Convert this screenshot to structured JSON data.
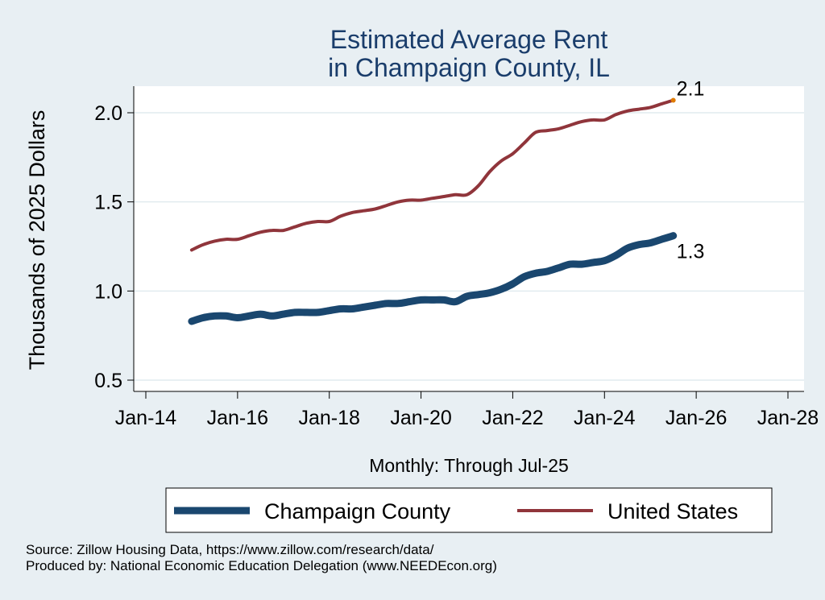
{
  "chart_data": {
    "type": "line",
    "title": [
      "Estimated Average Rent",
      "in Champaign County, IL"
    ],
    "xlabel": "Monthly: Through Jul-25",
    "ylabel": "Thousands of 2025 Dollars",
    "xlim": [
      "2014-01",
      "2028-01"
    ],
    "ylim": [
      0.5,
      2.1
    ],
    "xticks": [
      "Jan-14",
      "Jan-16",
      "Jan-18",
      "Jan-20",
      "Jan-22",
      "Jan-24",
      "Jan-26",
      "Jan-28"
    ],
    "xtick_values": [
      "2014-01",
      "2016-01",
      "2018-01",
      "2020-01",
      "2022-01",
      "2024-01",
      "2026-01",
      "2028-01"
    ],
    "yticks": [
      "0.5",
      "1.0",
      "1.5",
      "2.0"
    ],
    "ytick_values": [
      0.5,
      1.0,
      1.5,
      2.0
    ],
    "grid": "horizontal",
    "legend_position": "bottom",
    "series": [
      {
        "name": "Champaign County",
        "color": "#1a476f",
        "end_label": "1.3",
        "points": [
          [
            "2015-01",
            0.83
          ],
          [
            "2015-04",
            0.85
          ],
          [
            "2015-07",
            0.86
          ],
          [
            "2015-10",
            0.86
          ],
          [
            "2016-01",
            0.85
          ],
          [
            "2016-04",
            0.86
          ],
          [
            "2016-07",
            0.87
          ],
          [
            "2016-10",
            0.86
          ],
          [
            "2017-01",
            0.87
          ],
          [
            "2017-04",
            0.88
          ],
          [
            "2017-07",
            0.88
          ],
          [
            "2017-10",
            0.88
          ],
          [
            "2018-01",
            0.89
          ],
          [
            "2018-04",
            0.9
          ],
          [
            "2018-07",
            0.9
          ],
          [
            "2018-10",
            0.91
          ],
          [
            "2019-01",
            0.92
          ],
          [
            "2019-04",
            0.93
          ],
          [
            "2019-07",
            0.93
          ],
          [
            "2019-10",
            0.94
          ],
          [
            "2020-01",
            0.95
          ],
          [
            "2020-04",
            0.95
          ],
          [
            "2020-07",
            0.95
          ],
          [
            "2020-10",
            0.94
          ],
          [
            "2021-01",
            0.97
          ],
          [
            "2021-04",
            0.98
          ],
          [
            "2021-07",
            0.99
          ],
          [
            "2021-10",
            1.01
          ],
          [
            "2022-01",
            1.04
          ],
          [
            "2022-04",
            1.08
          ],
          [
            "2022-07",
            1.1
          ],
          [
            "2022-10",
            1.11
          ],
          [
            "2023-01",
            1.13
          ],
          [
            "2023-04",
            1.15
          ],
          [
            "2023-07",
            1.15
          ],
          [
            "2023-10",
            1.16
          ],
          [
            "2024-01",
            1.17
          ],
          [
            "2024-04",
            1.2
          ],
          [
            "2024-07",
            1.24
          ],
          [
            "2024-10",
            1.26
          ],
          [
            "2025-01",
            1.27
          ],
          [
            "2025-04",
            1.29
          ],
          [
            "2025-07",
            1.31
          ]
        ]
      },
      {
        "name": "United States",
        "color": "#90353b",
        "end_label": "2.1",
        "points": [
          [
            "2015-01",
            1.23
          ],
          [
            "2015-04",
            1.26
          ],
          [
            "2015-07",
            1.28
          ],
          [
            "2015-10",
            1.29
          ],
          [
            "2016-01",
            1.29
          ],
          [
            "2016-04",
            1.31
          ],
          [
            "2016-07",
            1.33
          ],
          [
            "2016-10",
            1.34
          ],
          [
            "2017-01",
            1.34
          ],
          [
            "2017-04",
            1.36
          ],
          [
            "2017-07",
            1.38
          ],
          [
            "2017-10",
            1.39
          ],
          [
            "2018-01",
            1.39
          ],
          [
            "2018-04",
            1.42
          ],
          [
            "2018-07",
            1.44
          ],
          [
            "2018-10",
            1.45
          ],
          [
            "2019-01",
            1.46
          ],
          [
            "2019-04",
            1.48
          ],
          [
            "2019-07",
            1.5
          ],
          [
            "2019-10",
            1.51
          ],
          [
            "2020-01",
            1.51
          ],
          [
            "2020-04",
            1.52
          ],
          [
            "2020-07",
            1.53
          ],
          [
            "2020-10",
            1.54
          ],
          [
            "2021-01",
            1.54
          ],
          [
            "2021-04",
            1.59
          ],
          [
            "2021-07",
            1.67
          ],
          [
            "2021-10",
            1.73
          ],
          [
            "2022-01",
            1.77
          ],
          [
            "2022-04",
            1.83
          ],
          [
            "2022-07",
            1.89
          ],
          [
            "2022-10",
            1.9
          ],
          [
            "2023-01",
            1.91
          ],
          [
            "2023-04",
            1.93
          ],
          [
            "2023-07",
            1.95
          ],
          [
            "2023-10",
            1.96
          ],
          [
            "2024-01",
            1.96
          ],
          [
            "2024-04",
            1.99
          ],
          [
            "2024-07",
            2.01
          ],
          [
            "2024-10",
            2.02
          ],
          [
            "2025-01",
            2.03
          ],
          [
            "2025-04",
            2.05
          ],
          [
            "2025-07",
            2.07
          ]
        ]
      }
    ]
  },
  "footer": {
    "source": "Source: Zillow Housing Data, https://www.zillow.com/research/data/",
    "producer": "Produced by: National Economic Education Delegation (www.NEEDEcon.org)"
  }
}
